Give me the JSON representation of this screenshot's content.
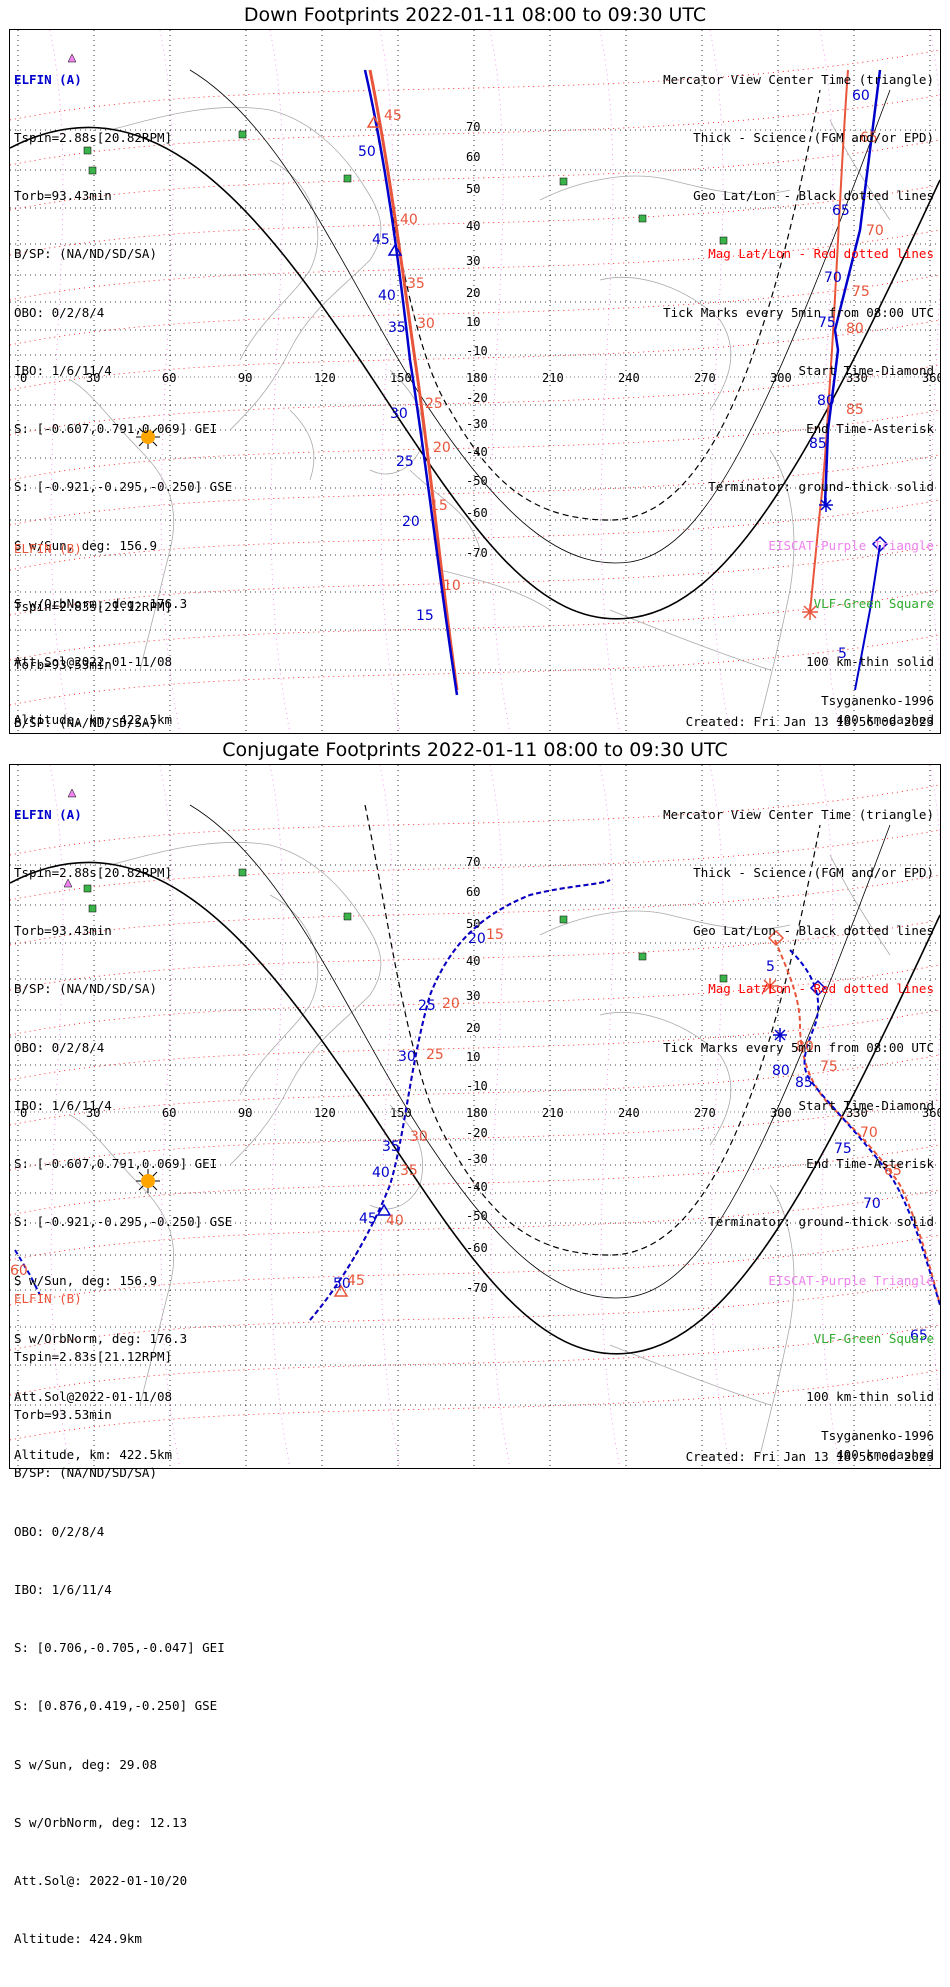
{
  "titles": {
    "down": "Down Footprints 2022-01-11 08:00 to 09:30 UTC",
    "conjugate": "Conjugate Footprints 2022-01-11 08:00 to 09:30 UTC"
  },
  "elfin_a": {
    "name": "ELFIN (A)",
    "tspin": "Tspin=2.88s[20.82RPM]",
    "torb": "Torb=93.43min",
    "bsp": "B/SP: (NA/ND/SD/SA)",
    "obo": "OBO: 0/2/8/4",
    "ibo": "IBO: 1/6/11/4",
    "s_gei": "S: [-0.607,0.791,0.069] GEI",
    "s_gse": "S: [-0.921,-0.295,-0.250] GSE",
    "sun": "S w/Sun, deg: 156.9",
    "orbnorm": "S w/OrbNorm, deg: 176.3",
    "attsol": "Att.Sol@2022-01-11/08",
    "altitude": "Altitude, km: 422.5km"
  },
  "elfin_b": {
    "name": "ELFIN (B)",
    "tspin": "Tspin=2.83s[21.12RPM]",
    "torb": "Torb=93.53min",
    "bsp": "B/SP: (NA/ND/SD/SA)",
    "obo": "OBO: 0/2/8/4",
    "ibo": "IBO: 1/6/11/4",
    "s_gei": "S: [0.706,-0.705,-0.047] GEI",
    "s_gse": "S: [0.876,0.419,-0.250] GSE",
    "sun": "S w/Sun, deg: 29.08",
    "orbnorm": "S w/OrbNorm, deg: 12.13",
    "attsol": "Att.Sol@: 2022-01-10/20",
    "altitude": "Altitude: 424.9km"
  },
  "legend": {
    "center": "Mercator View Center Time (triangle)",
    "thick": "Thick - Science (FGM and/or EPD)",
    "geo": "Geo Lat/Lon - Black dotted lines",
    "mag": "Mag Lat/Lon - Red dotted lines",
    "ticks": "Tick Marks every 5min from 08:00 UTC",
    "start": "Start Time-Diamond",
    "end": "End Time-Asterisk",
    "terminator": "Terminator: ground-thick solid",
    "eiscat": "EISCAT-Purple Triangle",
    "vlf": "VLF-Green Square",
    "km100": "100 km-thin solid",
    "km400": "400 km-dashed"
  },
  "footer": {
    "model": "Tsyganenko-1996",
    "created": "Created: Fri Jan 13 18:56:06 2023"
  },
  "axes": {
    "lon_ticks": [
      "0",
      "30",
      "60",
      "90",
      "120",
      "150",
      "180",
      "210",
      "240",
      "270",
      "300",
      "330",
      "360"
    ],
    "lat_labels_top": [
      "70",
      "60",
      "50",
      "40",
      "30",
      "20",
      "10",
      "-10",
      "-20",
      "-30",
      "-40",
      "-50",
      "-60",
      "-70"
    ],
    "lat_labels_bot": [
      "70",
      "60",
      "50",
      "40",
      "30",
      "20",
      "10",
      "-10",
      "-20",
      "-30",
      "-40",
      "-50",
      "-60",
      "-70"
    ]
  },
  "colors": {
    "elfin_a": "#0000cc",
    "elfin_b": "#e8553a",
    "mag_grid": "#ff0000",
    "geo_grid": "#000000",
    "eiscat": "#ee82ee",
    "vlf": "#3cb34a",
    "sun": "#ffa500"
  },
  "tracks": {
    "down_a_ticks": [
      "50",
      "45",
      "40",
      "35",
      "30",
      "25",
      "20",
      "15",
      "5",
      "60",
      "65",
      "70",
      "75",
      "80",
      "85"
    ],
    "down_b_ticks": [
      "45",
      "40",
      "35",
      "30",
      "25",
      "20",
      "15",
      "10",
      "65",
      "70",
      "75",
      "80",
      "85"
    ],
    "conj_a_ticks": [
      "20",
      "25",
      "30",
      "35",
      "40",
      "45",
      "50",
      "5",
      "80",
      "85",
      "75",
      "70",
      "65"
    ],
    "conj_b_ticks": [
      "15",
      "20",
      "25",
      "30",
      "35",
      "40",
      "45",
      "60",
      "65",
      "70",
      "75",
      "80"
    ]
  }
}
